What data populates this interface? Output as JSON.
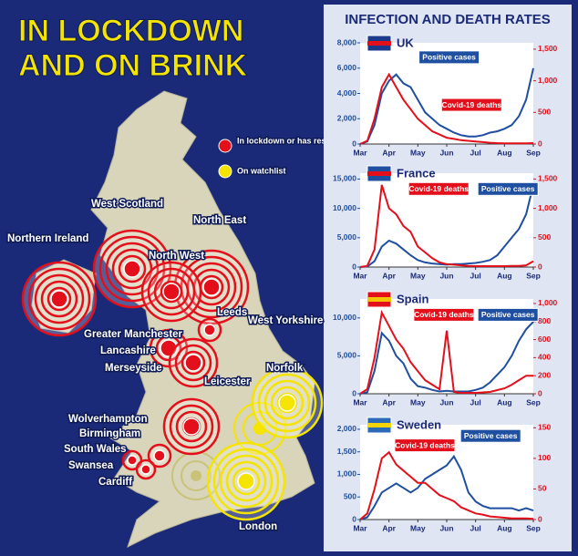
{
  "map": {
    "title_lines": [
      "IN LOCKDOWN",
      "AND ON BRINK"
    ],
    "legend": [
      {
        "label": "In lockdown or has restrictions",
        "color": "#e3101c"
      },
      {
        "label": "On watchlist",
        "color": "#f5e400"
      }
    ],
    "regions": [
      {
        "name": "Northern Ireland",
        "color": "#e3101c"
      },
      {
        "name": "West Scotland",
        "color": "#e3101c"
      },
      {
        "name": "North East",
        "color": "#e3101c"
      },
      {
        "name": "North West",
        "color": "#e3101c"
      },
      {
        "name": "Leeds",
        "color": "#e3101c"
      },
      {
        "name": "West Yorkshire",
        "color": "#e3101c"
      },
      {
        "name": "Greater Manchester",
        "color": "#e3101c"
      },
      {
        "name": "Lancashire",
        "color": "#e3101c"
      },
      {
        "name": "Merseyside",
        "color": "#e3101c"
      },
      {
        "name": "Leicester",
        "color": "#e3101c"
      },
      {
        "name": "Norfolk",
        "color": "#f5e400"
      },
      {
        "name": "Wolverhampton",
        "color": "#e3101c"
      },
      {
        "name": "Birmingham",
        "color": "#e3101c"
      },
      {
        "name": "South Wales",
        "color": "#e3101c"
      },
      {
        "name": "Swansea",
        "color": "#e3101c"
      },
      {
        "name": "Cardiff",
        "color": "#e3101c"
      },
      {
        "name": "London",
        "color": "#f5e400"
      }
    ]
  },
  "panel_title": "INFECTION AND DEATH RATES",
  "chart_data": [
    {
      "type": "line",
      "title": "UK",
      "x": [
        0,
        0.25,
        0.5,
        0.75,
        1,
        1.25,
        1.5,
        1.75,
        2,
        2.25,
        2.5,
        2.75,
        3,
        3.25,
        3.5,
        3.75,
        4,
        4.25,
        4.5,
        4.75,
        5,
        5.25,
        5.5,
        5.75,
        6
      ],
      "xlim": [
        0,
        6
      ],
      "xticks": [
        {
          "value": 0,
          "label": "Mar"
        },
        {
          "value": 1,
          "label": "Apr"
        },
        {
          "value": 2,
          "label": "May"
        },
        {
          "value": 3,
          "label": "Jun"
        },
        {
          "value": 4,
          "label": "Jul"
        },
        {
          "value": 5,
          "label": "Aug"
        },
        {
          "value": 6,
          "label": "Sep"
        }
      ],
      "ylim": [
        0,
        8000
      ],
      "yticks": [
        0,
        {
          "value": 2000,
          "label": "2,000"
        },
        {
          "value": 4000,
          "label": "4,000"
        },
        {
          "value": 6000,
          "label": "6,000"
        },
        {
          "value": 8000,
          "label": "8,000"
        }
      ],
      "y2lim": [
        0,
        1600
      ],
      "y2ticks": [
        0,
        500,
        {
          "value": 1000,
          "label": "1,000"
        },
        {
          "value": 1500,
          "label": "1,500"
        }
      ],
      "series": [
        {
          "name": "Positive cases",
          "color": "#1f4fa0",
          "values": [
            0,
            200,
            1500,
            4000,
            5000,
            5500,
            4800,
            4500,
            3500,
            2500,
            2000,
            1500,
            1200,
            900,
            700,
            600,
            600,
            700,
            900,
            1000,
            1200,
            1500,
            2200,
            3500,
            6000
          ]
        },
        {
          "name": "Covid-19 deaths",
          "color": "#e3101c",
          "axis": "y2",
          "values": [
            0,
            50,
            400,
            900,
            1100,
            900,
            700,
            550,
            400,
            300,
            200,
            150,
            100,
            80,
            60,
            50,
            40,
            30,
            20,
            15,
            12,
            10,
            10,
            10,
            15
          ]
        }
      ]
    },
    {
      "type": "line",
      "title": "France",
      "x": [
        0,
        0.25,
        0.5,
        0.75,
        1,
        1.25,
        1.5,
        1.75,
        2,
        2.25,
        2.5,
        2.75,
        3,
        3.25,
        3.5,
        3.75,
        4,
        4.25,
        4.5,
        4.75,
        5,
        5.25,
        5.5,
        5.75,
        6
      ],
      "xlim": [
        0,
        6
      ],
      "xticks": [
        {
          "value": 0,
          "label": "Mar"
        },
        {
          "value": 1,
          "label": "Apr"
        },
        {
          "value": 2,
          "label": "May"
        },
        {
          "value": 3,
          "label": "Jun"
        },
        {
          "value": 4,
          "label": "Jul"
        },
        {
          "value": 5,
          "label": "Aug"
        },
        {
          "value": 6,
          "label": "Sep"
        }
      ],
      "ylim": [
        0,
        16000
      ],
      "yticks": [
        0,
        {
          "value": 5000,
          "label": "5,000"
        },
        {
          "value": 10000,
          "label": "10,000"
        },
        {
          "value": 15000,
          "label": "15,000"
        }
      ],
      "y2lim": [
        0,
        1600
      ],
      "y2ticks": [
        0,
        500,
        {
          "value": 1000,
          "label": "1,000"
        },
        {
          "value": 1500,
          "label": "1,500"
        }
      ],
      "series": [
        {
          "name": "Positive cases",
          "color": "#1f4fa0",
          "values": [
            0,
            100,
            1000,
            3500,
            4500,
            4000,
            3000,
            2000,
            1200,
            800,
            600,
            500,
            400,
            500,
            500,
            600,
            700,
            900,
            1200,
            2000,
            3500,
            5000,
            6500,
            9000,
            14000
          ]
        },
        {
          "name": "Covid-19 deaths",
          "color": "#e3101c",
          "axis": "y2",
          "values": [
            0,
            20,
            300,
            1400,
            1000,
            900,
            700,
            600,
            350,
            250,
            150,
            80,
            50,
            40,
            30,
            20,
            15,
            15,
            15,
            15,
            15,
            20,
            20,
            30,
            100
          ]
        }
      ]
    },
    {
      "type": "line",
      "title": "Spain",
      "x": [
        0,
        0.25,
        0.5,
        0.75,
        1,
        1.25,
        1.5,
        1.75,
        2,
        2.25,
        2.5,
        2.75,
        3,
        3.25,
        3.5,
        3.75,
        4,
        4.25,
        4.5,
        4.75,
        5,
        5.25,
        5.5,
        5.75,
        6
      ],
      "xlim": [
        0,
        6
      ],
      "xticks": [
        {
          "value": 0,
          "label": "Mar"
        },
        {
          "value": 1,
          "label": "Apr"
        },
        {
          "value": 2,
          "label": "May"
        },
        {
          "value": 3,
          "label": "Jun"
        },
        {
          "value": 4,
          "label": "Jul"
        },
        {
          "value": 5,
          "label": "Aug"
        },
        {
          "value": 6,
          "label": "Sep"
        }
      ],
      "ylim": [
        0,
        12500
      ],
      "yticks": [
        0,
        {
          "value": 5000,
          "label": "5,000"
        },
        {
          "value": 10000,
          "label": "10,000"
        }
      ],
      "y2lim": [
        0,
        1050
      ],
      "y2ticks": [
        0,
        200,
        400,
        600,
        800,
        {
          "value": 1000,
          "label": "1,000"
        }
      ],
      "series": [
        {
          "name": "Positive cases",
          "color": "#1f4fa0",
          "values": [
            0,
            200,
            3000,
            8000,
            7000,
            5000,
            4000,
            2000,
            1000,
            800,
            500,
            300,
            400,
            300,
            300,
            300,
            500,
            800,
            1500,
            2500,
            3500,
            5000,
            7000,
            8500,
            9500
          ]
        },
        {
          "name": "Covid-19 deaths",
          "color": "#e3101c",
          "axis": "y2",
          "values": [
            0,
            50,
            400,
            900,
            750,
            600,
            500,
            350,
            250,
            150,
            100,
            50,
            700,
            20,
            10,
            10,
            10,
            15,
            20,
            40,
            60,
            100,
            150,
            200,
            200
          ]
        }
      ]
    },
    {
      "type": "line",
      "title": "Sweden",
      "x": [
        0,
        0.25,
        0.5,
        0.75,
        1,
        1.25,
        1.5,
        1.75,
        2,
        2.25,
        2.5,
        2.75,
        3,
        3.25,
        3.5,
        3.75,
        4,
        4.25,
        4.5,
        4.75,
        5,
        5.25,
        5.5,
        5.75,
        6
      ],
      "xlim": [
        0,
        6
      ],
      "xticks": [
        {
          "value": 0,
          "label": "Mar"
        },
        {
          "value": 1,
          "label": "Apr"
        },
        {
          "value": 2,
          "label": "May"
        },
        {
          "value": 3,
          "label": "Jun"
        },
        {
          "value": 4,
          "label": "Jul"
        },
        {
          "value": 5,
          "label": "Aug"
        },
        {
          "value": 6,
          "label": "Sep"
        }
      ],
      "ylim": [
        0,
        2100
      ],
      "yticks": [
        0,
        500,
        {
          "value": 1000,
          "label": "1,000"
        },
        {
          "value": 1500,
          "label": "1,500"
        },
        {
          "value": 2000,
          "label": "2,000"
        }
      ],
      "y2lim": [
        0,
        155
      ],
      "y2ticks": [
        0,
        50,
        100,
        150
      ],
      "series": [
        {
          "name": "Positive cases",
          "color": "#1f4fa0",
          "values": [
            0,
            50,
            300,
            600,
            700,
            800,
            700,
            600,
            700,
            900,
            1000,
            1100,
            1200,
            1400,
            1100,
            600,
            400,
            300,
            250,
            250,
            250,
            250,
            200,
            250,
            200
          ]
        },
        {
          "name": "Covid-19 deaths",
          "color": "#e3101c",
          "axis": "y2",
          "values": [
            0,
            10,
            50,
            100,
            110,
            90,
            80,
            70,
            60,
            60,
            50,
            40,
            35,
            30,
            20,
            15,
            10,
            8,
            5,
            4,
            3,
            2,
            2,
            2,
            1
          ]
        }
      ]
    }
  ]
}
